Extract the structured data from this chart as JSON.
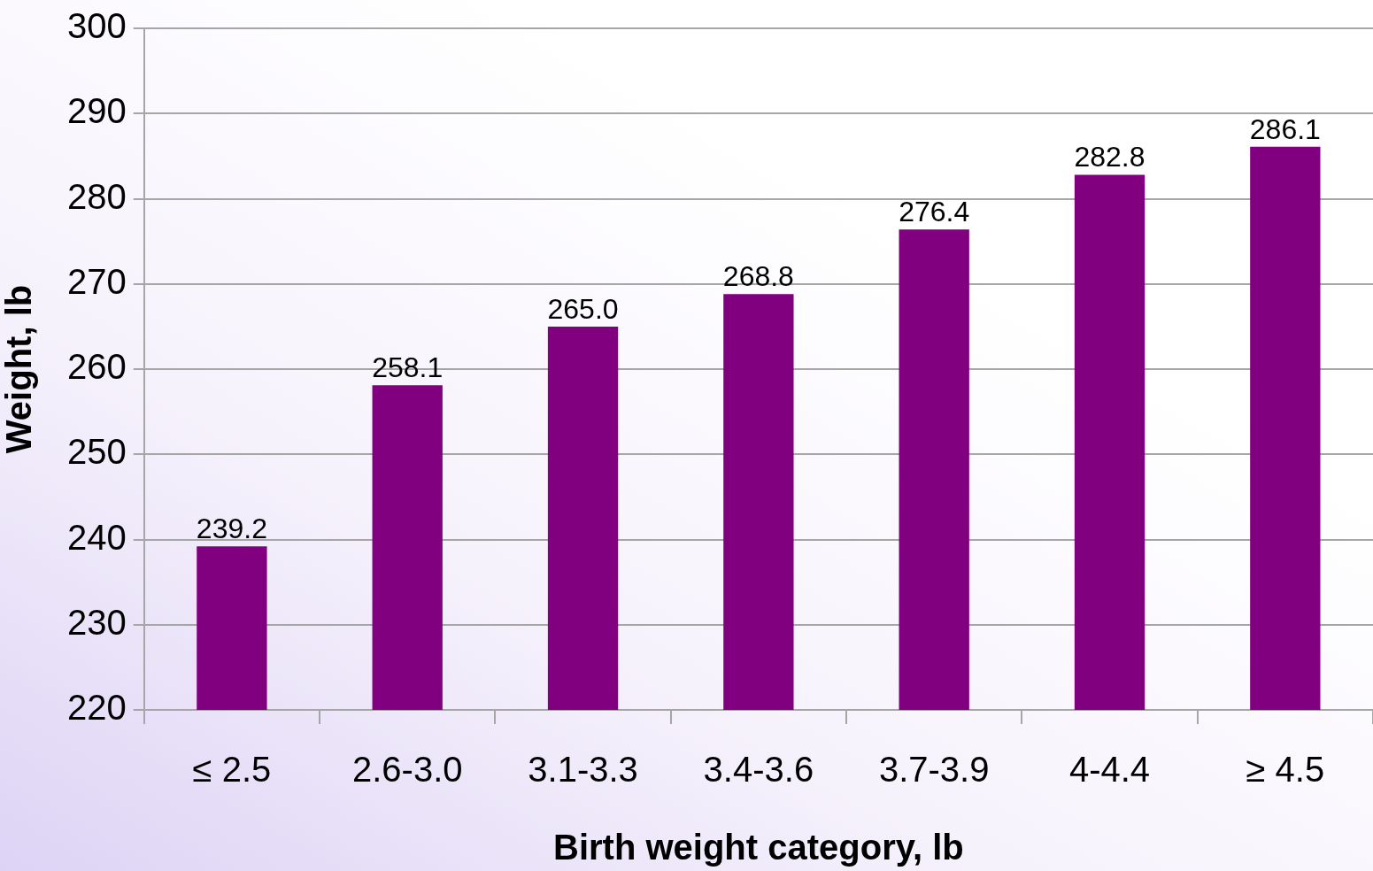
{
  "chart_data": {
    "type": "bar",
    "xlabel": "Birth weight category, lb",
    "ylabel": "Weight, lb",
    "categories": [
      "≤ 2.5",
      "2.6-3.0",
      "3.1-3.3",
      "3.4-3.6",
      "3.7-3.9",
      "4-4.4",
      "≥ 4.5"
    ],
    "values": [
      239.2,
      258.1,
      265.0,
      268.8,
      276.4,
      282.8,
      286.1
    ],
    "value_labels": [
      "239.2",
      "258.1",
      "265.0",
      "268.8",
      "276.4",
      "282.8",
      "286.1"
    ],
    "color": "#800080",
    "ylim": [
      220,
      300
    ],
    "yticks": [
      220,
      230,
      240,
      250,
      260,
      270,
      280,
      290,
      300
    ],
    "grid": "y",
    "legend": false
  }
}
